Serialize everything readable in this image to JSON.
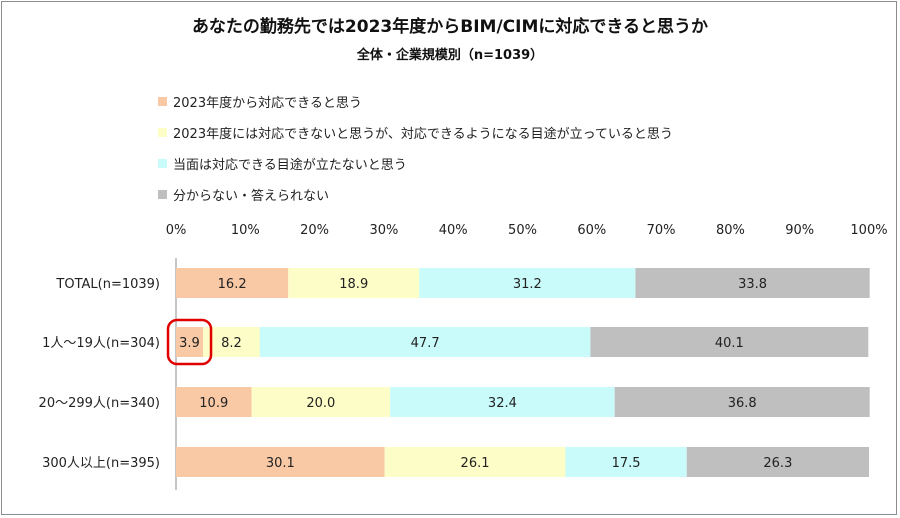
{
  "title": "あなたの勤務先では2023年度からBIM/CIMに対応できると思うか",
  "subtitle": "全体・企業規模別（n=1039）",
  "chart_data": {
    "type": "bar",
    "orientation": "horizontal",
    "stacked": true,
    "xlim": [
      0,
      100
    ],
    "xticks": [
      "0%",
      "10%",
      "20%",
      "30%",
      "40%",
      "50%",
      "60%",
      "70%",
      "80%",
      "90%",
      "100%"
    ],
    "categories": [
      "TOTAL(n=1039)",
      "1人～19人(n=304)",
      "20～299人(n=340)",
      "300人以上(n=395)"
    ],
    "series": [
      {
        "name": "2023年度から対応できると思う",
        "color": "#f9c9a6",
        "values": [
          16.2,
          3.9,
          10.9,
          30.1
        ]
      },
      {
        "name": "2023年度には対応できないと思うが、対応できるようになる目途が立っていると思う",
        "color": "#fdfdc8",
        "values": [
          18.9,
          8.2,
          20.0,
          26.1
        ]
      },
      {
        "name": "当面は対応できる目途が立たないと思う",
        "color": "#c9fbfb",
        "values": [
          31.2,
          47.7,
          32.4,
          17.5
        ]
      },
      {
        "name": "分からない・答えられない",
        "color": "#bfbfbf",
        "values": [
          33.8,
          40.1,
          36.8,
          26.3
        ]
      }
    ],
    "data_labels": [
      [
        "16.2",
        "3.9",
        "10.9",
        "30.1"
      ],
      [
        "18.9",
        "8.2",
        "20.0",
        "26.1"
      ],
      [
        "31.2",
        "47.7",
        "32.4",
        "17.5"
      ],
      [
        "33.8",
        "40.1",
        "36.8",
        "26.3"
      ]
    ],
    "highlight": {
      "series": 0,
      "category": 1,
      "color": "#e00000"
    },
    "legend": "top-left",
    "grid": false
  }
}
